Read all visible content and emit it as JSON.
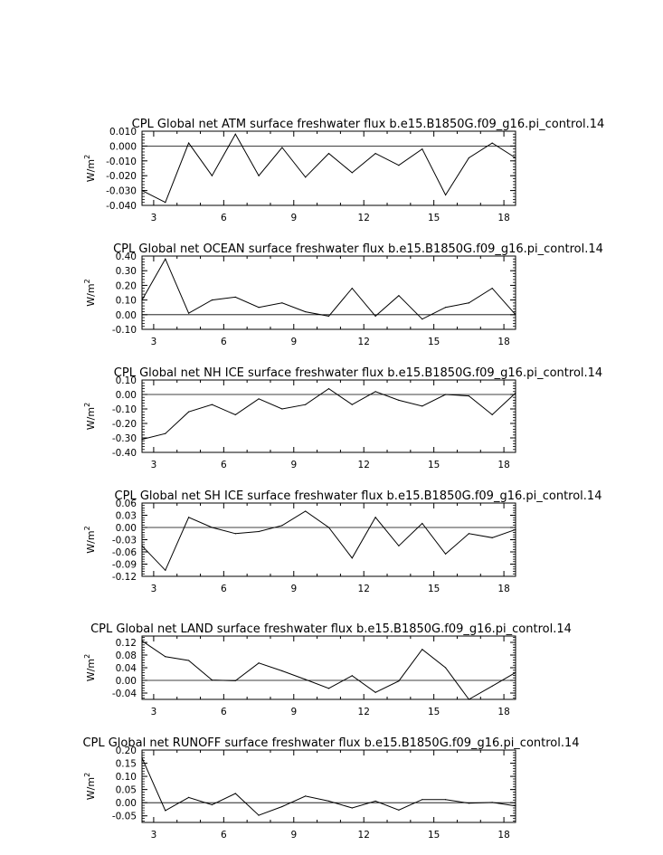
{
  "chart_data": [
    {
      "type": "line",
      "title": "CPL Global net ATM surface freshwater flux b.e15.B1850G.f09_g16.pi_control.14",
      "ylabel": "W/m",
      "ylabel_sup": "2",
      "xlim": [
        2.5,
        18.5
      ],
      "ylim": [
        -0.04,
        0.01
      ],
      "xticks": [
        3,
        6,
        9,
        12,
        15,
        18
      ],
      "yticks": [
        0.01,
        0.0,
        -0.01,
        -0.02,
        -0.03,
        -0.04
      ],
      "ytick_labels": [
        "0.010",
        "0.000",
        "-0.010",
        "-0.020",
        "-0.030",
        "-0.040"
      ],
      "zero_line": true,
      "x": [
        2.5,
        3.5,
        4.5,
        5.5,
        6.5,
        7.5,
        8.5,
        9.5,
        10.5,
        11.5,
        12.5,
        13.5,
        14.5,
        15.5,
        16.5,
        17.5,
        18.5
      ],
      "y": [
        -0.03,
        -0.038,
        0.002,
        -0.02,
        0.008,
        -0.02,
        -0.001,
        -0.021,
        -0.005,
        -0.018,
        -0.005,
        -0.013,
        -0.002,
        -0.033,
        -0.008,
        0.002,
        -0.008
      ]
    },
    {
      "type": "line",
      "title": "CPL Global net OCEAN surface freshwater flux b.e15.B1850G.f09_g16.pi_control.14",
      "ylabel": "W/m",
      "ylabel_sup": "2",
      "xlim": [
        2.5,
        18.5
      ],
      "ylim": [
        -0.1,
        0.4
      ],
      "xticks": [
        3,
        6,
        9,
        12,
        15,
        18
      ],
      "yticks": [
        0.4,
        0.3,
        0.2,
        0.1,
        0.0,
        -0.1
      ],
      "ytick_labels": [
        "0.40",
        "0.30",
        "0.20",
        "0.10",
        "0.00",
        "-0.10"
      ],
      "zero_line": true,
      "x": [
        2.5,
        3.5,
        4.5,
        5.5,
        6.5,
        7.5,
        8.5,
        9.5,
        10.5,
        11.5,
        12.5,
        13.5,
        14.5,
        15.5,
        16.5,
        17.5,
        18.5
      ],
      "y": [
        0.1,
        0.38,
        0.01,
        0.1,
        0.12,
        0.05,
        0.08,
        0.02,
        -0.01,
        0.18,
        -0.01,
        0.13,
        -0.03,
        0.05,
        0.08,
        0.18,
        0.0
      ]
    },
    {
      "type": "line",
      "title": "CPL Global net NH ICE surface freshwater flux b.e15.B1850G.f09_g16.pi_control.14",
      "ylabel": "W/m",
      "ylabel_sup": "2",
      "xlim": [
        2.5,
        18.5
      ],
      "ylim": [
        -0.4,
        0.1
      ],
      "xticks": [
        3,
        6,
        9,
        12,
        15,
        18
      ],
      "yticks": [
        0.1,
        0.0,
        -0.1,
        -0.2,
        -0.3,
        -0.4
      ],
      "ytick_labels": [
        "0.10",
        "0.00",
        "-0.10",
        "-0.20",
        "-0.30",
        "-0.40"
      ],
      "zero_line": true,
      "x": [
        2.5,
        3.5,
        4.5,
        5.5,
        6.5,
        7.5,
        8.5,
        9.5,
        10.5,
        11.5,
        12.5,
        13.5,
        14.5,
        15.5,
        16.5,
        17.5,
        18.5
      ],
      "y": [
        -0.31,
        -0.27,
        -0.12,
        -0.07,
        -0.14,
        -0.03,
        -0.1,
        -0.07,
        0.04,
        -0.07,
        0.02,
        -0.04,
        -0.08,
        0.0,
        -0.01,
        -0.14,
        0.01
      ]
    },
    {
      "type": "line",
      "title": "CPL Global net SH ICE surface freshwater flux b.e15.B1850G.f09_g16.pi_control.14",
      "ylabel": "W/m",
      "ylabel_sup": "2",
      "xlim": [
        2.5,
        18.5
      ],
      "ylim": [
        -0.12,
        0.06
      ],
      "xticks": [
        3,
        6,
        9,
        12,
        15,
        18
      ],
      "yticks": [
        0.06,
        0.03,
        0.0,
        -0.03,
        -0.06,
        -0.09,
        -0.12
      ],
      "ytick_labels": [
        "0.06",
        "0.03",
        "0.00",
        "-0.03",
        "-0.06",
        "-0.09",
        "-0.12"
      ],
      "zero_line": true,
      "x": [
        2.5,
        3.5,
        4.5,
        5.5,
        6.5,
        7.5,
        8.5,
        9.5,
        10.5,
        11.5,
        12.5,
        13.5,
        14.5,
        15.5,
        16.5,
        17.5,
        18.5
      ],
      "y": [
        -0.045,
        -0.105,
        0.025,
        0.0,
        -0.015,
        -0.01,
        0.005,
        0.04,
        0.0,
        -0.075,
        0.025,
        -0.045,
        0.01,
        -0.065,
        -0.015,
        -0.025,
        -0.005
      ]
    },
    {
      "type": "line",
      "title": "CPL Global net LAND surface freshwater flux b.e15.B1850G.f09_g16.pi_control.14",
      "ylabel": "W/m",
      "ylabel_sup": "2",
      "xlim": [
        2.5,
        18.5
      ],
      "ylim": [
        -0.06,
        0.14
      ],
      "xticks": [
        3,
        6,
        9,
        12,
        15,
        18
      ],
      "yticks": [
        0.12,
        0.08,
        0.04,
        0.0,
        -0.04
      ],
      "ytick_labels": [
        "0.12",
        "0.08",
        "0.04",
        "0.00",
        "-0.04"
      ],
      "zero_line": true,
      "x": [
        2.5,
        3.5,
        4.5,
        5.5,
        6.5,
        7.5,
        8.5,
        9.5,
        10.5,
        11.5,
        12.5,
        13.5,
        14.5,
        15.5,
        16.5,
        17.5,
        18.5
      ],
      "y": [
        0.125,
        0.075,
        0.063,
        0.001,
        -0.001,
        0.055,
        0.03,
        0.003,
        -0.025,
        0.015,
        -0.038,
        -0.002,
        0.098,
        0.04,
        -0.06,
        -0.018,
        0.025
      ]
    },
    {
      "type": "line",
      "title": "CPL Global net RUNOFF surface freshwater flux b.e15.B1850G.f09_g16.pi_control.14",
      "ylabel": "W/m",
      "ylabel_sup": "2",
      "xlim": [
        2.5,
        18.5
      ],
      "ylim": [
        -0.075,
        0.2
      ],
      "xticks": [
        3,
        6,
        9,
        12,
        15,
        18
      ],
      "yticks": [
        0.2,
        0.15,
        0.1,
        0.05,
        0.0,
        -0.05
      ],
      "ytick_labels": [
        "0.20",
        "0.15",
        "0.10",
        "0.05",
        "0.00",
        "-0.05"
      ],
      "zero_line": true,
      "x": [
        2.5,
        3.5,
        4.5,
        5.5,
        6.5,
        7.5,
        8.5,
        9.5,
        10.5,
        11.5,
        12.5,
        13.5,
        14.5,
        15.5,
        16.5,
        17.5,
        18.5
      ],
      "y": [
        0.17,
        -0.03,
        0.02,
        -0.008,
        0.035,
        -0.048,
        -0.015,
        0.025,
        0.006,
        -0.02,
        0.006,
        -0.028,
        0.012,
        0.012,
        -0.002,
        0.001,
        -0.012
      ]
    }
  ]
}
